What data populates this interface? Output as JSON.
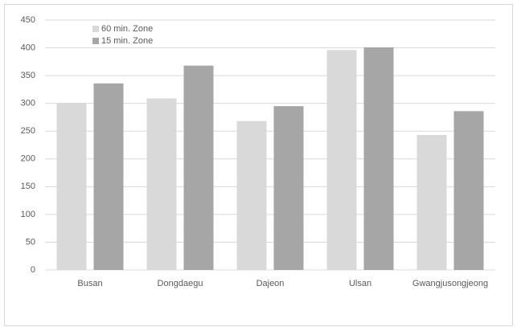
{
  "chart_data": {
    "type": "bar",
    "categories": [
      "Busan",
      "Dongdaegu",
      "Dajeon",
      "Ulsan",
      "Gwangjusongjeong"
    ],
    "series": [
      {
        "name": "60 min. Zone",
        "color": "#d9d9d9",
        "values": [
          301,
          309,
          268,
          396,
          243
        ]
      },
      {
        "name": "15 min. Zone",
        "color": "#a6a6a6",
        "values": [
          336,
          368,
          295,
          401,
          286
        ]
      }
    ],
    "ylim": [
      0,
      450
    ],
    "yticks": [
      0,
      50,
      100,
      150,
      200,
      250,
      300,
      350,
      400,
      450
    ],
    "grid": true
  }
}
